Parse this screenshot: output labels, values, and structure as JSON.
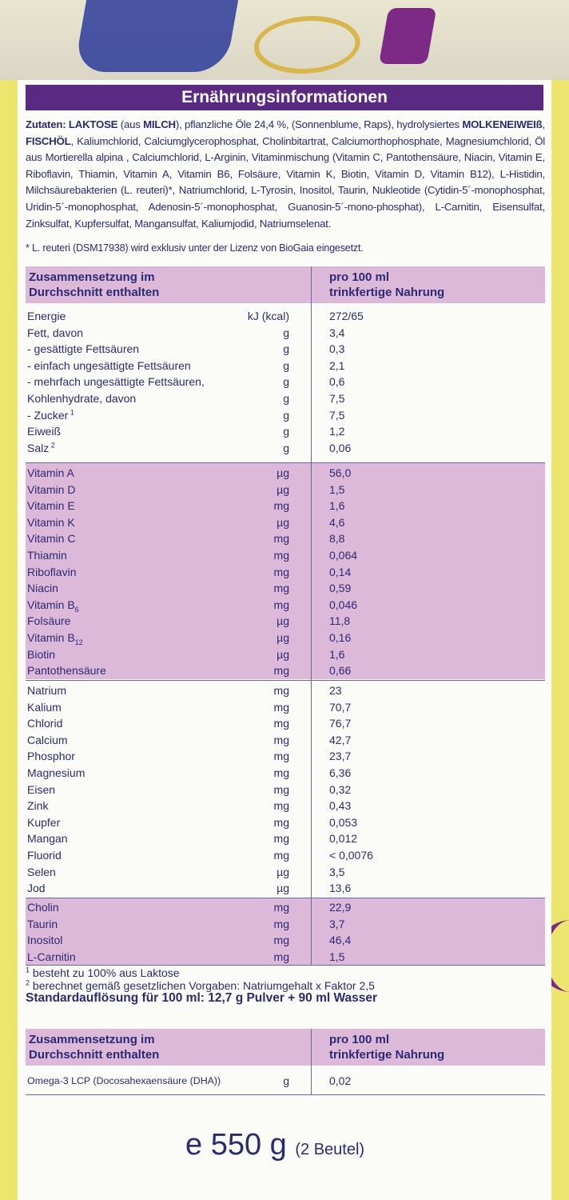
{
  "banner_title": "Ernährungsinformationen",
  "ingredients": {
    "label": "Zutaten:",
    "laktose": "LAKTOSE",
    "aus": "(aus",
    "milch": "MILCH",
    "text1": "), pflanzliche Öle 24,4 %, (Sonnenblume, Raps), hydrolysiertes",
    "molke": "MOLKENEIWEIß",
    "fisch": "FISCHÖL",
    "text2": ", Kaliumchlorid, Calciumglycerophosphat, Cholinbitartrat, Calciumorthophosphate, Magnesiumchlorid, Öl aus Mortierella alpina , Calciumchlorid, L-Arginin, Vitaminmischung (Vitamin C, Pantothensäure, Niacin, Vitamin E, Riboflavin, Thiamin, Vitamin A, Vitamin B6, Folsäure, Vitamin K, Biotin, Vitamin D, Vitamin B12), L-Histidin, Milchsäurebakterien (L. reuteri)*, Natriumchlorid, L-Tyrosin, Inositol, Taurin, Nukleotide (Cytidin-5´-monophosphat, Uridin-5´-monophosphat, Adenosin-5´-monophosphat, Guanosin-5´-mono-phosphat), L-Carnitin, Eisensulfat, Zinksulfat, Kupfersulfat, Mangansulfat, Kaliumjodid, Natriumselenat.",
    "footnote": "* L. reuteri (DSM17938) wird exklusiv unter der Lizenz von BioGaia eingesetzt."
  },
  "table1_header": {
    "left_line1": "Zusammensetzung im",
    "left_line2": "Durchschnitt enthalten",
    "right_line1": "pro 100 ml",
    "right_line2": "trinkfertige Nahrung"
  },
  "section_macros": [
    {
      "name": "Energie",
      "unit": "kJ (kcal)",
      "value": "272/65"
    },
    {
      "name": "Fett, davon",
      "unit": "g",
      "value": "3,4"
    },
    {
      "name": " - gesättigte Fettsäuren",
      "unit": "g",
      "value": "0,3"
    },
    {
      "name": " - einfach ungesättigte Fettsäuren",
      "unit": "g",
      "value": "2,1"
    },
    {
      "name": " - mehrfach ungesättigte Fettsäuren,",
      "unit": "g",
      "value": "0,6"
    },
    {
      "name": "Kohlenhydrate, davon",
      "unit": "g",
      "value": "7,5"
    },
    {
      "name": " - Zucker",
      "sup": "1",
      "unit": "g",
      "value": "7,5"
    },
    {
      "name": "Eiweiß",
      "unit": "g",
      "value": "1,2"
    },
    {
      "name": "Salz",
      "sup": "2",
      "unit": "g",
      "value": "0,06"
    }
  ],
  "section_vitamins": [
    {
      "name": "Vitamin A",
      "unit": "µg",
      "value": "56,0"
    },
    {
      "name": "Vitamin D",
      "unit": "µg",
      "value": "1,5"
    },
    {
      "name": "Vitamin E",
      "unit": "mg",
      "value": "1,6"
    },
    {
      "name": "Vitamin K",
      "unit": "µg",
      "value": "4,6"
    },
    {
      "name": "Vitamin C",
      "unit": "mg",
      "value": "8,8"
    },
    {
      "name": "Thiamin",
      "unit": "mg",
      "value": "0,064"
    },
    {
      "name": "Riboflavin",
      "unit": "mg",
      "value": "0,14"
    },
    {
      "name": "Niacin",
      "unit": "mg",
      "value": "0,59"
    },
    {
      "name": "Vitamin B",
      "sub": "6",
      "unit": "mg",
      "value": "0,046"
    },
    {
      "name": "Folsäure",
      "unit": "µg",
      "value": "11,8"
    },
    {
      "name": "Vitamin B",
      "sub": "12",
      "unit": "µg",
      "value": "0,16"
    },
    {
      "name": "Biotin",
      "unit": "µg",
      "value": "1,6"
    },
    {
      "name": "Pantothensäure",
      "unit": "mg",
      "value": "0,66"
    }
  ],
  "section_minerals": [
    {
      "name": "Natrium",
      "unit": "mg",
      "value": "23"
    },
    {
      "name": "Kalium",
      "unit": "mg",
      "value": "70,7"
    },
    {
      "name": "Chlorid",
      "unit": "mg",
      "value": "76,7"
    },
    {
      "name": "Calcium",
      "unit": "mg",
      "value": "42,7"
    },
    {
      "name": "Phosphor",
      "unit": "mg",
      "value": "23,7"
    },
    {
      "name": "Magnesium",
      "unit": "mg",
      "value": "6,36"
    },
    {
      "name": "Eisen",
      "unit": "mg",
      "value": "0,32"
    },
    {
      "name": "Zink",
      "unit": "mg",
      "value": "0,43"
    },
    {
      "name": "Kupfer",
      "unit": "mg",
      "value": "0,053"
    },
    {
      "name": "Mangan",
      "unit": "mg",
      "value": "0,012"
    },
    {
      "name": "Fluorid",
      "unit": "mg",
      "value": "< 0,0076"
    },
    {
      "name": "Selen",
      "unit": "µg",
      "value": "3,5"
    },
    {
      "name": "Jod",
      "unit": "µg",
      "value": "13,6"
    }
  ],
  "section_other": [
    {
      "name": "Cholin",
      "unit": "mg",
      "value": "22,9"
    },
    {
      "name": "Taurin",
      "unit": "mg",
      "value": "3,7"
    },
    {
      "name": "Inositol",
      "unit": "mg",
      "value": "46,4"
    },
    {
      "name": "L-Carnitin",
      "unit": "mg",
      "value": "1,5"
    }
  ],
  "notes": {
    "n1_mark": "1",
    "n1": "besteht zu 100% aus Laktose",
    "n2_mark": "2",
    "n2": "berechnet gemäß gesetzlichen Vorgaben: Natriumgehalt x Faktor 2,5",
    "standard": "Standardauflösung für 100 ml: 12,7 g Pulver + 90 ml Wasser"
  },
  "table2_header": {
    "left_line1": "Zusammensetzung im",
    "left_line2": "Durchschnitt enthalten",
    "right_line1": "pro 100 ml",
    "right_line2": "trinkfertige Nahrung"
  },
  "dha": {
    "name": "Omega-3 LCP (Docosahexaensäure (DHA))",
    "unit": "g",
    "value": "0,02"
  },
  "weight": {
    "e_mark": "e",
    "amount": "550 g",
    "packs": "(2 Beutel)"
  }
}
